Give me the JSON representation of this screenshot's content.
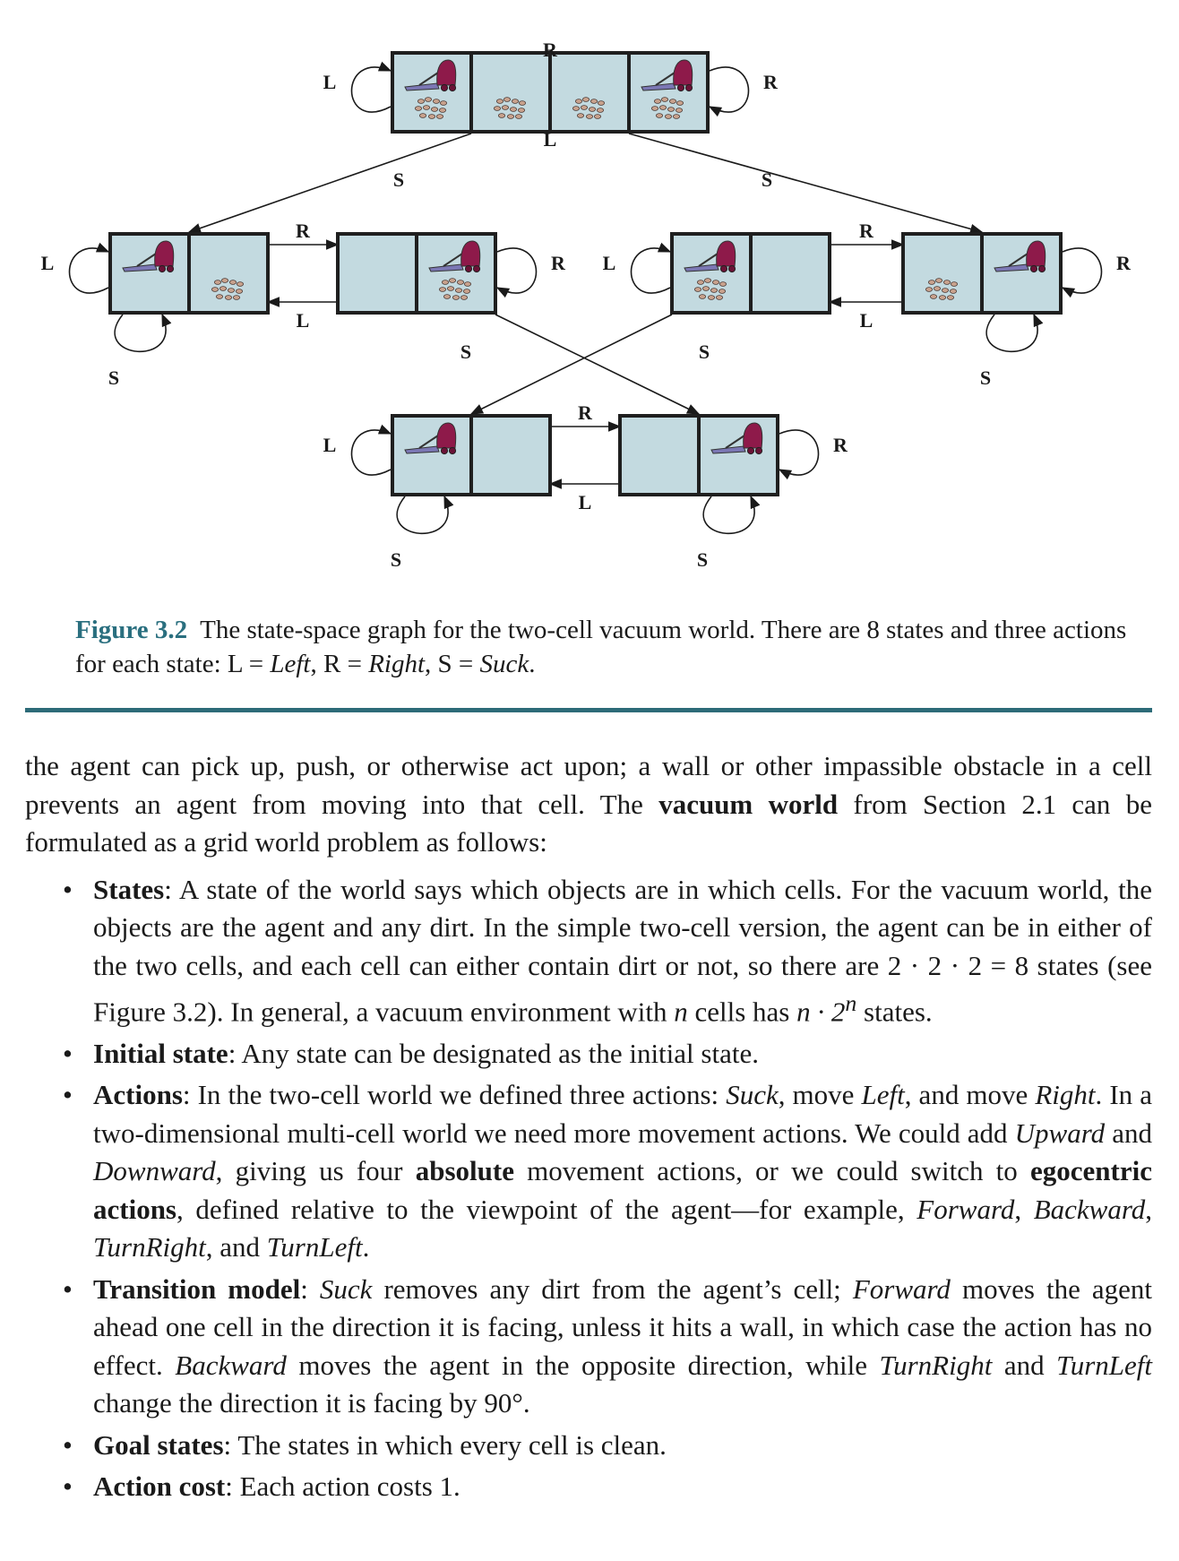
{
  "figure": {
    "colors": {
      "cell": "#c3dae0",
      "border": "#1f1f1f",
      "vacuum_body": "#8e1a4a",
      "vacuum_nozzle": "#7b77b4",
      "dirt": "#c9a28d"
    },
    "action_labels": {
      "left": "L",
      "right": "R",
      "suck": "S"
    },
    "states": [
      {
        "agent": "left",
        "dirt_left": true,
        "dirt_right": true
      },
      {
        "agent": "right",
        "dirt_left": true,
        "dirt_right": true
      },
      {
        "agent": "left",
        "dirt_left": false,
        "dirt_right": true
      },
      {
        "agent": "right",
        "dirt_left": false,
        "dirt_right": true
      },
      {
        "agent": "left",
        "dirt_left": true,
        "dirt_right": false
      },
      {
        "agent": "right",
        "dirt_left": true,
        "dirt_right": false
      },
      {
        "agent": "left",
        "dirt_left": false,
        "dirt_right": false
      },
      {
        "agent": "right",
        "dirt_left": false,
        "dirt_right": false
      }
    ]
  },
  "caption": {
    "label": "Figure 3.2",
    "text_1": "The state-space graph for the two-cell vacuum world. There are 8 states and three actions for each state: L = ",
    "left": "Left",
    "sep_1": ", R = ",
    "right": "Right",
    "sep_2": ", S = ",
    "suck": "Suck",
    "end": "."
  },
  "intro": {
    "text_1": "the agent can pick up, push, or otherwise act upon; a wall or other impassible obstacle in a cell prevents an agent from moving into that cell. The ",
    "bold": "vacuum world",
    "text_2": " from Section 2.1 can be formulated as a grid world problem as follows:"
  },
  "bullets": {
    "bullet": "•",
    "states": {
      "term": "States",
      "text": ": A state of the world says which objects are in which cells. For the vacuum world, the objects are the agent and any dirt. In the simple two-cell version, the agent can be in either of the two cells, and each cell can either contain dirt or not, so there are 2 · 2 · 2 = 8 states (see Figure 3.2). In general, a vacuum environment with ",
      "n": "n",
      "text_2": " cells has ",
      "formula": "n · 2",
      "exp": "n",
      "text_3": " states."
    },
    "initial": {
      "term": "Initial state",
      "text": ": Any state can be designated as the initial state."
    },
    "actions": {
      "term": "Actions",
      "t1": ": In the two-cell world we defined three actions: ",
      "i1": "Suck",
      "t2": ", move ",
      "i2": "Left",
      "t3": ", and move ",
      "i3": "Right",
      "t4": ". In a two-dimensional multi-cell world we need more movement actions. We could add ",
      "i4": "Upward",
      "t5": " and ",
      "i5": "Downward",
      "t6": ", giving us four ",
      "b1": "absolute",
      "t7": " movement actions, or we could switch to ",
      "b2": "egocentric actions",
      "t8": ", defined relative to the viewpoint of the agent—for example, ",
      "i6": "Forward",
      "t9": ", ",
      "i7": "Backward",
      "t10": ", ",
      "i8": "TurnRight",
      "t11": ", and ",
      "i9": "TurnLeft",
      "t12": "."
    },
    "transition": {
      "term": "Transition model",
      "t1": ": ",
      "i1": "Suck",
      "t2": " removes any dirt from the agent’s cell; ",
      "i2": "Forward",
      "t3": " moves the agent ahead one cell in the direction it is facing, unless it hits a wall, in which case the action has no effect. ",
      "i3": "Backward",
      "t4": " moves the agent in the opposite direction, while ",
      "i4": "TurnRight",
      "t5": " and ",
      "i5": "TurnLeft",
      "t6": " change the direction it is facing by 90°."
    },
    "goal": {
      "term": "Goal states",
      "text": ": The states in which every cell is clean."
    },
    "cost": {
      "term": "Action cost",
      "text": ": Each action costs 1."
    }
  }
}
